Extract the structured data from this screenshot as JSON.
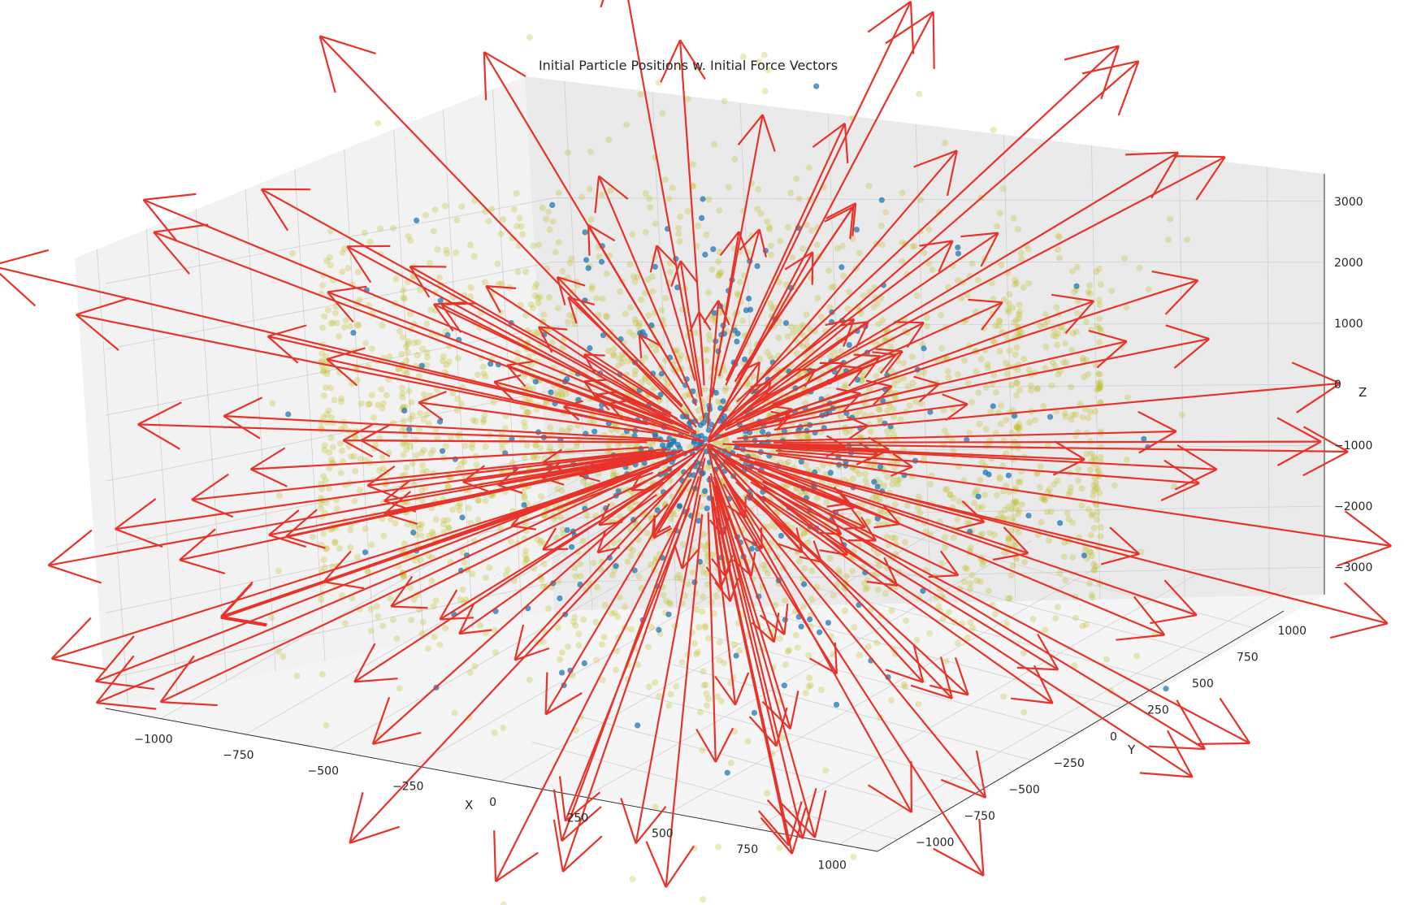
{
  "chart_data": {
    "type": "scatter3d",
    "title": "Initial Particle Positions w. Initial Force Vectors",
    "xlabel": "X",
    "ylabel": "Y",
    "zlabel": "Z",
    "xlim": [
      -1100,
      1100
    ],
    "ylim": [
      -1100,
      1100
    ],
    "zlim": [
      -3300,
      3300
    ],
    "x_ticks": [
      "−1000",
      "−750",
      "−500",
      "−250",
      "0",
      "250",
      "500",
      "750",
      "1000"
    ],
    "y_ticks": [
      "−1000",
      "−750",
      "−500",
      "−250",
      "0",
      "250",
      "500",
      "750",
      "1000"
    ],
    "z_ticks": [
      "−3000",
      "−2000",
      "−1000",
      "0",
      "1000",
      "2000",
      "3000"
    ],
    "grid": true,
    "series": [
      {
        "kind": "background-points",
        "color": "#bcbd22",
        "alpha": 0.3,
        "shape": "concentric cylinders",
        "count": 2600
      },
      {
        "kind": "particles",
        "color": "#1f77b4",
        "count": 420
      },
      {
        "kind": "force-vectors",
        "color": "#e8332a",
        "count": 180
      }
    ]
  }
}
